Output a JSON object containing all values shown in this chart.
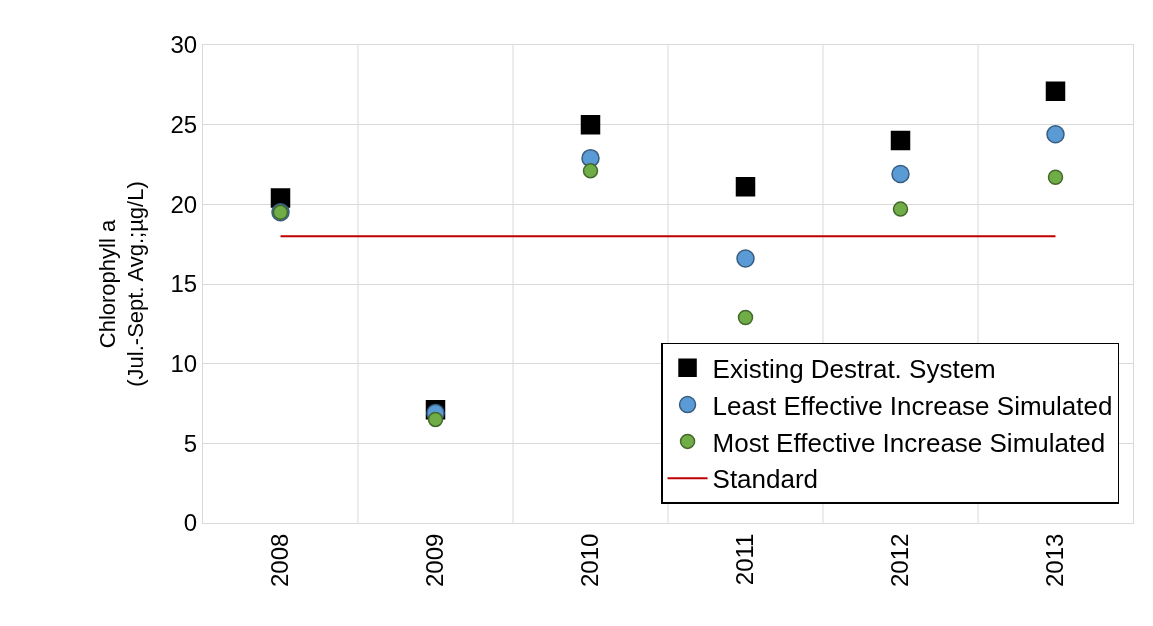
{
  "chart_data": {
    "type": "scatter",
    "ylabel": "Chlorophyll a\n(Jul.-Sept. Avg.;µg/L)",
    "categories": [
      "2008",
      "2009",
      "2010",
      "2011",
      "2012",
      "2013"
    ],
    "series": [
      {
        "name": "Existing Destrat. System",
        "color": "#000000",
        "marker": "square",
        "values": [
          20.4,
          7.1,
          25.0,
          21.1,
          24.0,
          27.1
        ]
      },
      {
        "name": "Least Effective Increase Simulated",
        "color": "#5b9bd5",
        "marker": "circle",
        "values": [
          19.5,
          6.9,
          22.9,
          16.6,
          21.9,
          24.4
        ]
      },
      {
        "name": "Most Effective Increase Simulated",
        "color": "#70ad47",
        "marker": "circle",
        "values": [
          19.5,
          6.5,
          22.1,
          12.9,
          19.7,
          21.7
        ]
      },
      {
        "name": "Standard",
        "type": "line",
        "color": "#c00000",
        "marker": "none",
        "values": [
          18,
          18,
          18,
          18,
          18,
          18
        ]
      }
    ],
    "ylim": [
      0,
      30
    ],
    "yticks": [
      0,
      5,
      10,
      15,
      20,
      25,
      30
    ],
    "grid": true,
    "legend": "bottom right"
  }
}
